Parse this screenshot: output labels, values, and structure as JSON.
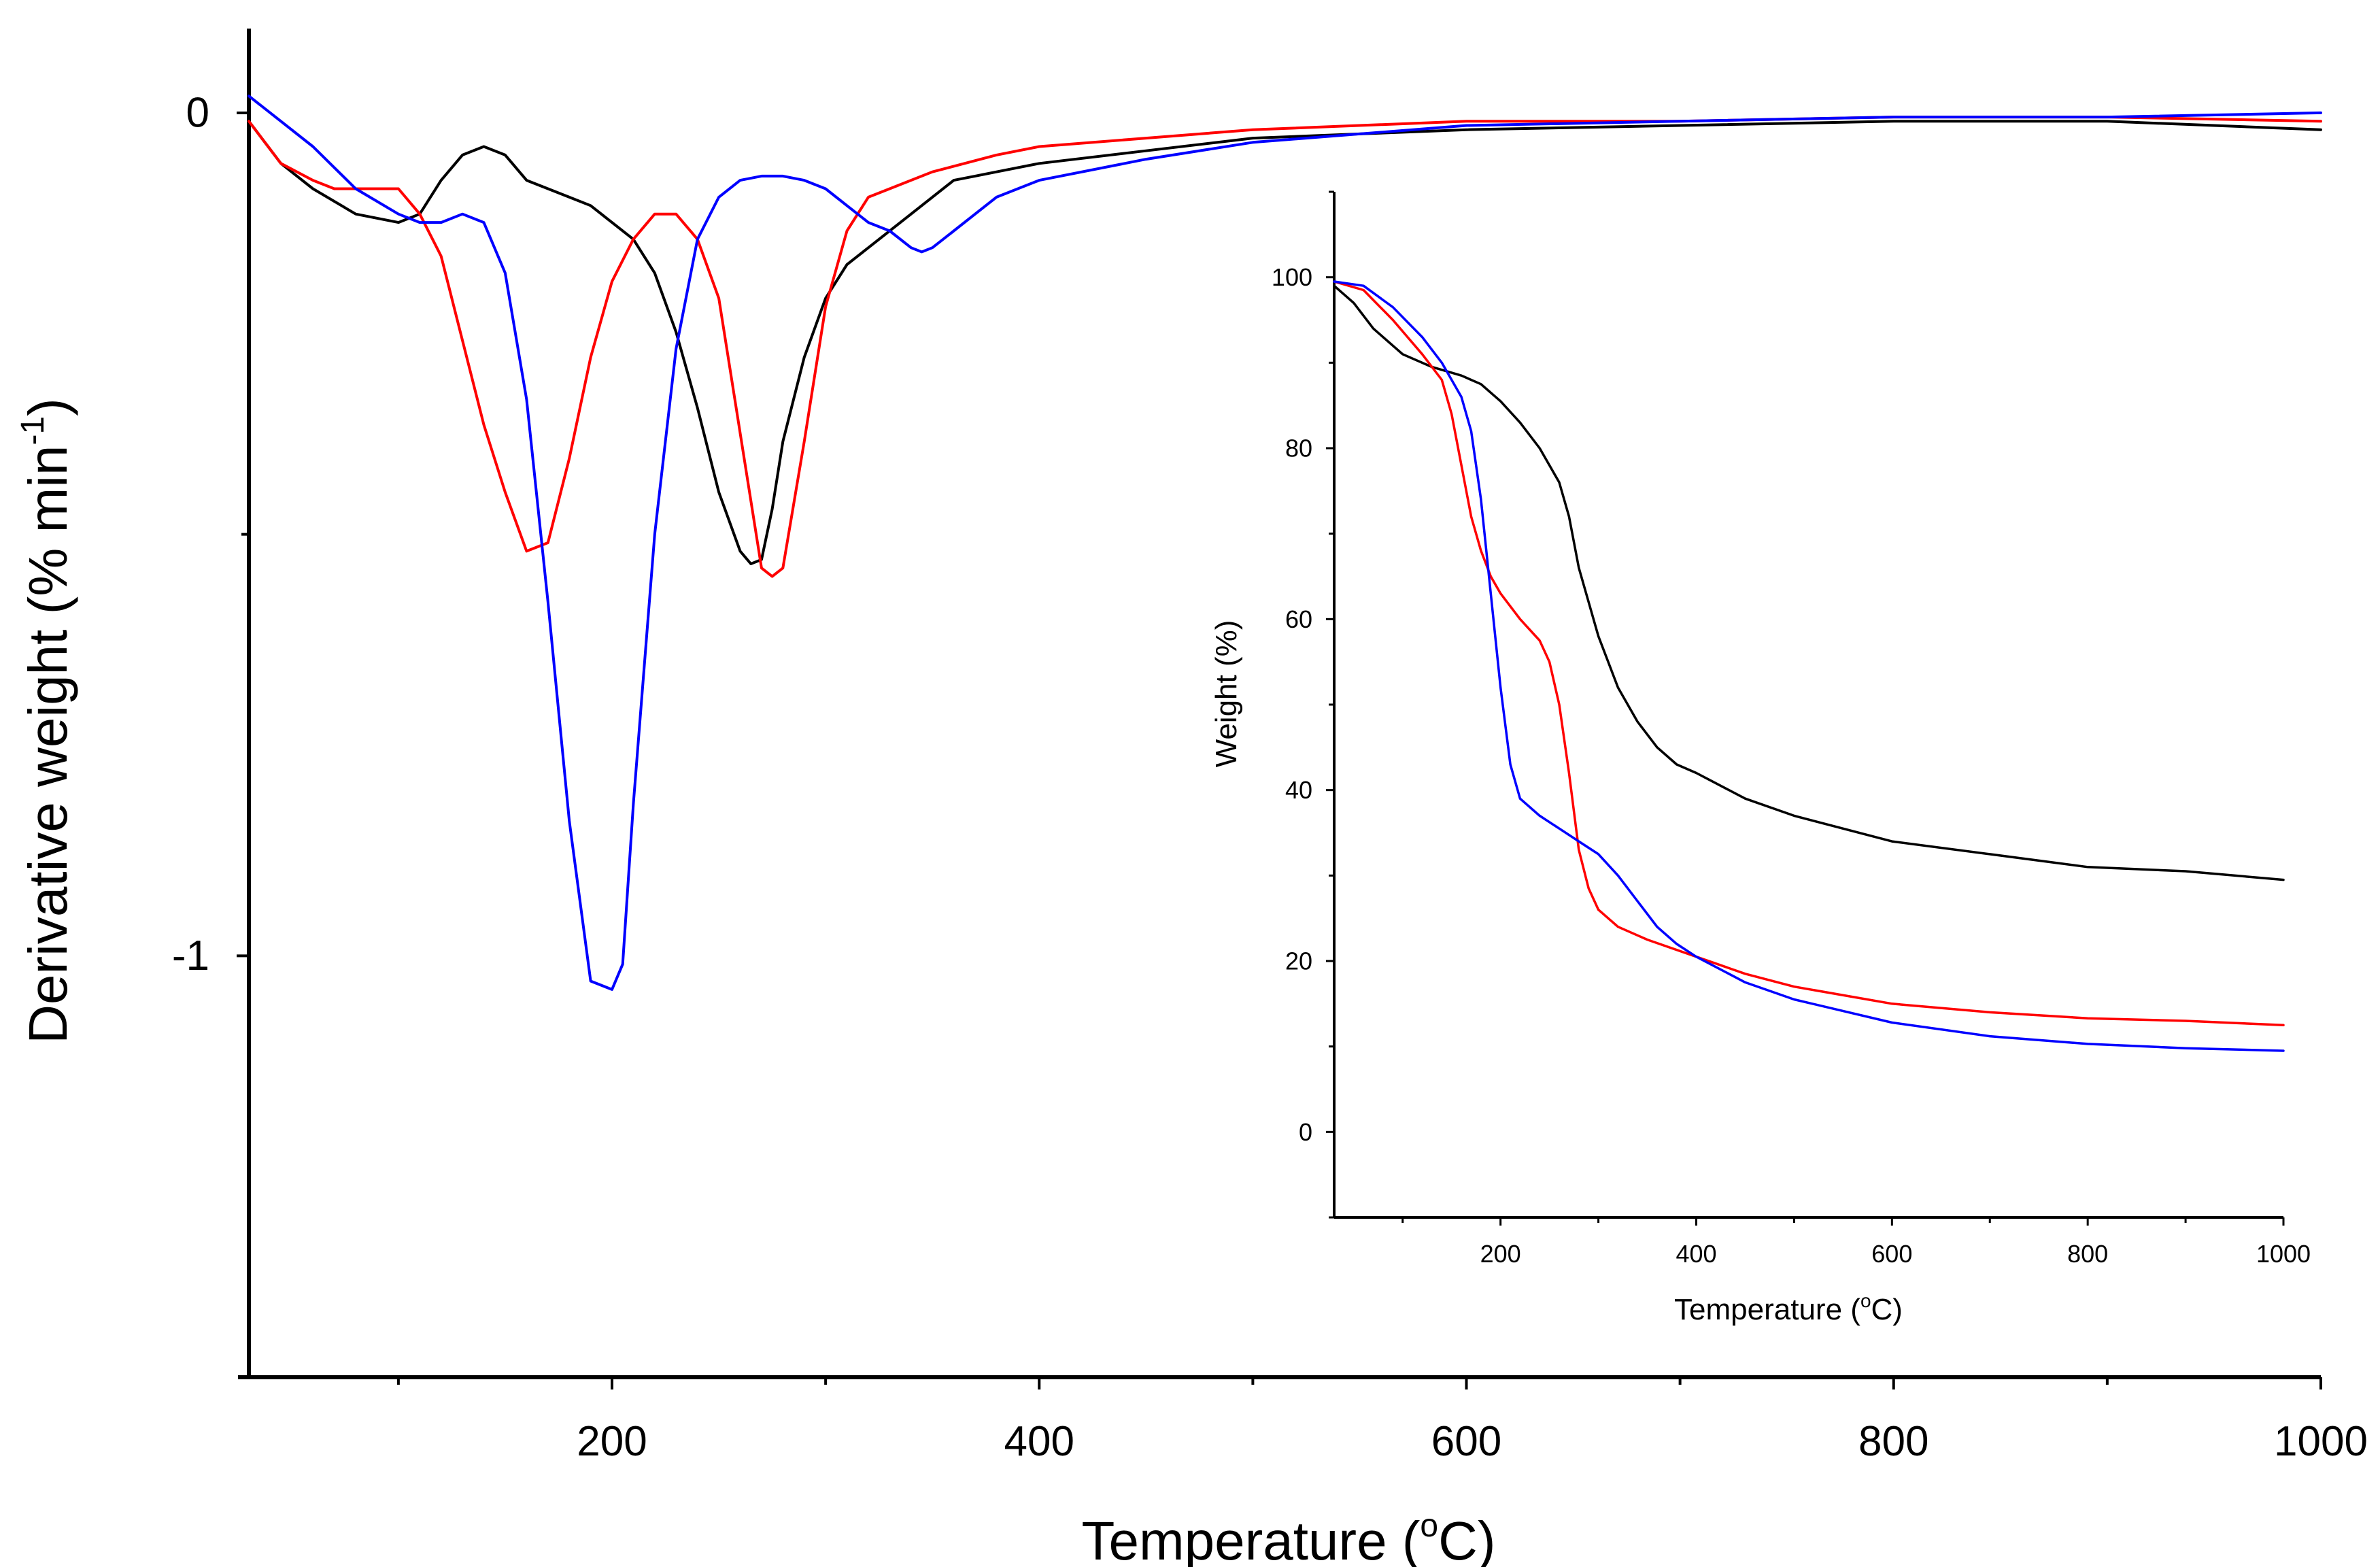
{
  "chart_data": [
    {
      "type": "line",
      "name": "main-dtg",
      "xlabel": "Temperature (",
      "xlabel_unit_sup": "o",
      "xlabel_unit": "C)",
      "ylabel": "Derivative weight (% min",
      "ylabel_sup": "-1",
      "ylabel_close": ")",
      "xlim": [
        30,
        1000
      ],
      "ylim": [
        -1.5,
        0.1
      ],
      "x_ticks": [
        200,
        400,
        600,
        800,
        1000
      ],
      "x_tick_labels": [
        "200",
        "400",
        "600",
        "800",
        "1000"
      ],
      "x_minor_ticks": [
        100,
        300,
        500,
        700,
        900
      ],
      "y_ticks": [
        0,
        -1
      ],
      "y_tick_labels": [
        "0",
        "-1"
      ],
      "y_minor_ticks": [
        -0.5
      ],
      "grid": false,
      "series": [
        {
          "name": "black",
          "color": "#000000",
          "x": [
            30,
            45,
            60,
            80,
            100,
            110,
            120,
            130,
            140,
            150,
            160,
            170,
            180,
            190,
            200,
            210,
            220,
            230,
            240,
            250,
            260,
            265,
            270,
            275,
            280,
            290,
            300,
            310,
            320,
            340,
            360,
            370,
            380,
            400,
            450,
            500,
            550,
            600,
            700,
            800,
            900,
            1000
          ],
          "y": [
            -0.01,
            -0.06,
            -0.09,
            -0.12,
            -0.13,
            -0.12,
            -0.08,
            -0.05,
            -0.04,
            -0.05,
            -0.08,
            -0.09,
            -0.1,
            -0.11,
            -0.13,
            -0.15,
            -0.19,
            -0.26,
            -0.35,
            -0.45,
            -0.52,
            -0.535,
            -0.53,
            -0.47,
            -0.39,
            -0.29,
            -0.22,
            -0.18,
            -0.16,
            -0.12,
            -0.08,
            -0.075,
            -0.07,
            -0.06,
            -0.045,
            -0.03,
            -0.025,
            -0.02,
            -0.015,
            -0.01,
            -0.01,
            -0.02
          ]
        },
        {
          "name": "red",
          "color": "#ff0000",
          "x": [
            30,
            45,
            60,
            70,
            80,
            90,
            100,
            110,
            120,
            130,
            140,
            150,
            160,
            170,
            180,
            190,
            200,
            210,
            220,
            230,
            240,
            250,
            260,
            270,
            275,
            280,
            290,
            300,
            310,
            320,
            330,
            350,
            380,
            400,
            450,
            500,
            600,
            700,
            800,
            900,
            1000
          ],
          "y": [
            -0.01,
            -0.06,
            -0.08,
            -0.09,
            -0.09,
            -0.09,
            -0.09,
            -0.12,
            -0.17,
            -0.27,
            -0.37,
            -0.45,
            -0.52,
            -0.51,
            -0.41,
            -0.29,
            -0.2,
            -0.15,
            -0.12,
            -0.12,
            -0.15,
            -0.22,
            -0.38,
            -0.54,
            -0.55,
            -0.54,
            -0.39,
            -0.23,
            -0.14,
            -0.1,
            -0.09,
            -0.07,
            -0.05,
            -0.04,
            -0.03,
            -0.02,
            -0.01,
            -0.01,
            -0.005,
            -0.005,
            -0.01
          ]
        },
        {
          "name": "blue",
          "color": "#0000ff",
          "x": [
            30,
            45,
            60,
            80,
            100,
            110,
            120,
            130,
            140,
            150,
            160,
            170,
            180,
            190,
            200,
            205,
            210,
            220,
            230,
            240,
            250,
            260,
            270,
            280,
            290,
            300,
            310,
            320,
            330,
            340,
            345,
            350,
            360,
            370,
            380,
            400,
            450,
            500,
            600,
            700,
            800,
            900,
            1000
          ],
          "y": [
            0.02,
            -0.01,
            -0.04,
            -0.09,
            -0.12,
            -0.13,
            -0.13,
            -0.12,
            -0.13,
            -0.19,
            -0.34,
            -0.58,
            -0.84,
            -1.03,
            -1.04,
            -1.01,
            -0.82,
            -0.5,
            -0.28,
            -0.15,
            -0.1,
            -0.08,
            -0.075,
            -0.075,
            -0.08,
            -0.09,
            -0.11,
            -0.13,
            -0.14,
            -0.16,
            -0.165,
            -0.16,
            -0.14,
            -0.12,
            -0.1,
            -0.08,
            -0.055,
            -0.035,
            -0.015,
            -0.01,
            -0.005,
            -0.005,
            0.0
          ]
        }
      ]
    },
    {
      "type": "line",
      "name": "inset-tga",
      "xlabel": "Temperature (",
      "xlabel_unit_sup": "o",
      "xlabel_unit": "C)",
      "ylabel": "Weight (%)",
      "xlim": [
        30,
        1000
      ],
      "ylim": [
        -10,
        110
      ],
      "x_ticks": [
        200,
        400,
        600,
        800,
        1000
      ],
      "x_tick_labels": [
        "200",
        "400",
        "600",
        "800",
        "1000"
      ],
      "x_minor_ticks": [
        100,
        300,
        500,
        700,
        900
      ],
      "y_ticks": [
        0,
        20,
        40,
        60,
        80,
        100
      ],
      "y_tick_labels": [
        "0",
        "20",
        "40",
        "60",
        "80",
        "100"
      ],
      "y_minor_ticks": [
        -10,
        10,
        30,
        50,
        70,
        90,
        110
      ],
      "grid": false,
      "series": [
        {
          "name": "black",
          "color": "#000000",
          "x": [
            30,
            50,
            70,
            100,
            130,
            160,
            180,
            200,
            220,
            240,
            250,
            260,
            270,
            280,
            300,
            320,
            340,
            360,
            380,
            400,
            450,
            500,
            600,
            700,
            800,
            900,
            1000
          ],
          "y": [
            99,
            97,
            94,
            91,
            89.5,
            88.5,
            87.5,
            85.5,
            83,
            80,
            78,
            76,
            72,
            66,
            58,
            52,
            48,
            45,
            43,
            42,
            39,
            37,
            34,
            32.5,
            31,
            30.5,
            29.5
          ]
        },
        {
          "name": "red",
          "color": "#ff0000",
          "x": [
            30,
            60,
            90,
            120,
            140,
            150,
            160,
            170,
            180,
            190,
            200,
            220,
            240,
            250,
            260,
            270,
            280,
            290,
            300,
            320,
            350,
            400,
            450,
            500,
            600,
            700,
            800,
            900,
            1000
          ],
          "y": [
            99.5,
            98.5,
            95,
            91,
            88,
            84,
            78,
            72,
            68,
            65,
            63,
            60,
            57.5,
            55,
            50,
            42,
            33,
            28.5,
            26,
            24,
            22.5,
            20.5,
            18.5,
            17,
            15,
            14,
            13.3,
            13,
            12.5
          ]
        },
        {
          "name": "blue",
          "color": "#0000ff",
          "x": [
            30,
            60,
            90,
            120,
            140,
            160,
            170,
            180,
            190,
            200,
            210,
            220,
            240,
            260,
            280,
            300,
            320,
            340,
            360,
            380,
            400,
            450,
            500,
            600,
            700,
            800,
            900,
            1000
          ],
          "y": [
            99.5,
            99,
            96.5,
            93,
            90,
            86,
            82,
            74,
            63,
            52,
            43,
            39,
            37,
            35.5,
            34,
            32.5,
            30,
            27,
            24,
            22,
            20.5,
            17.5,
            15.5,
            12.8,
            11.2,
            10.3,
            9.8,
            9.5
          ]
        }
      ]
    }
  ]
}
